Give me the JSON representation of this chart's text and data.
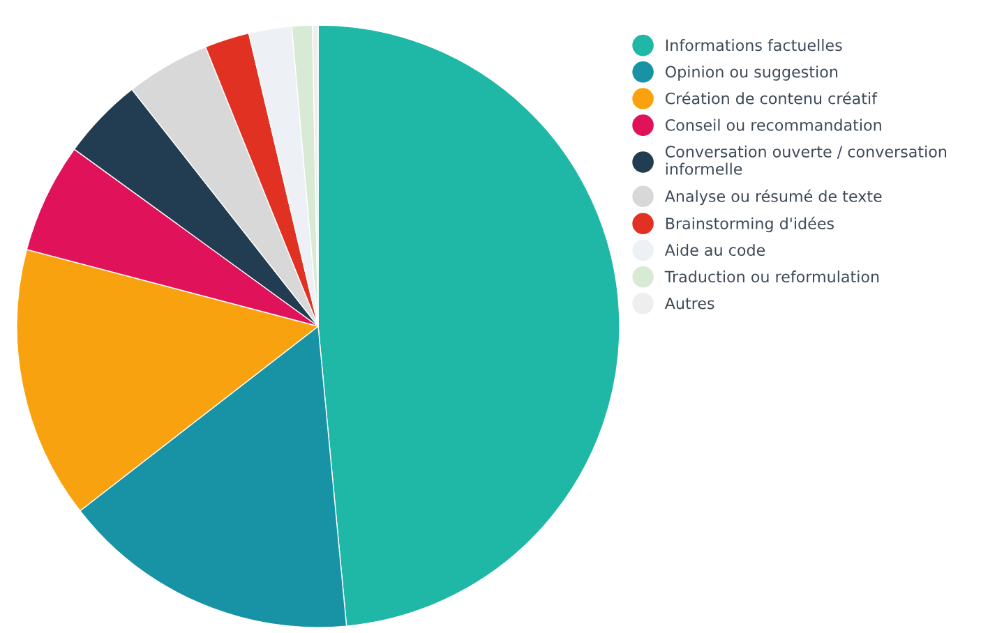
{
  "chart_data": {
    "type": "pie",
    "categories": [
      "Informations factuelles",
      "Opinion ou suggestion",
      "Création de contenu créatif",
      "Conseil ou recommandation",
      "Conversation ouverte / conversation\ninformelle",
      "Analyse ou résumé de texte",
      "Brainstorming d'idées",
      "Aide au code",
      "Traduction ou reformulation",
      "Autres"
    ],
    "values": [
      48.5,
      16.0,
      14.6,
      5.9,
      4.4,
      4.5,
      2.4,
      2.3,
      1.1,
      0.3
    ],
    "colors": [
      "#1fb7a6",
      "#1893a6",
      "#f9a20f",
      "#e0135a",
      "#223d52",
      "#d8d8d8",
      "#e03122",
      "#edf1f5",
      "#d8ead4",
      "#eeeeee"
    ],
    "legend": "right"
  }
}
